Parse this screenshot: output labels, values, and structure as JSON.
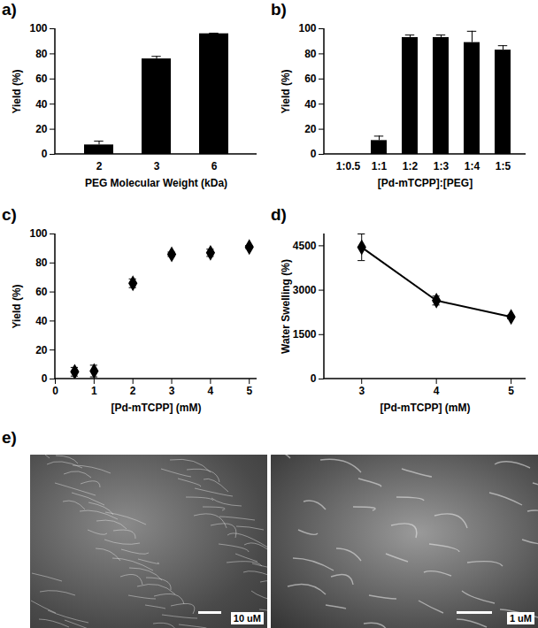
{
  "chart_data": [
    {
      "title": "a)",
      "type": "bar",
      "categories": [
        "2",
        "3",
        "6"
      ],
      "values": [
        7.5,
        76,
        96
      ],
      "errors": [
        3,
        2,
        0.5
      ],
      "color": "#000000",
      "x_label": "PEG Molecular Weight (kDa)",
      "y_label": "Yield (%)",
      "ylim": [
        0,
        100
      ],
      "yticks": [
        0,
        20,
        40,
        60,
        80,
        100
      ]
    },
    {
      "title": "b)",
      "type": "bar",
      "categories": [
        "1:0.5",
        "1:1",
        "1:2",
        "1:3",
        "1:4",
        "1:5"
      ],
      "values": [
        0,
        11,
        93,
        93,
        89,
        83
      ],
      "errors": [
        0,
        3.5,
        2,
        2,
        9,
        3.5
      ],
      "color": "#000000",
      "x_label": "[Pd-mTCPP]:[PEG]",
      "y_label": "Yield (%)",
      "ylim": [
        0,
        100
      ],
      "yticks": [
        0,
        20,
        40,
        60,
        80,
        100
      ]
    },
    {
      "title": "c)",
      "type": "scatter",
      "x": [
        0.5,
        1,
        2,
        3,
        4,
        5
      ],
      "values": [
        5,
        5.5,
        66,
        86,
        87,
        91
      ],
      "errors": [
        3,
        4,
        3,
        1.5,
        2.5,
        1
      ],
      "color": "#000000",
      "marker": "diamond",
      "x_label": "[Pd-mTCPP] (mM)",
      "y_label": "Yield (%)",
      "xlim": [
        0,
        5.2
      ],
      "xticks": [
        0,
        1,
        2,
        3,
        4,
        5
      ],
      "ylim": [
        0,
        100
      ],
      "yticks": [
        0,
        20,
        40,
        60,
        80,
        100
      ]
    },
    {
      "title": "d)",
      "type": "line",
      "x": [
        3,
        4,
        5
      ],
      "values": [
        4450,
        2650,
        2100
      ],
      "errors": [
        450,
        150,
        60
      ],
      "color": "#000000",
      "marker": "diamond",
      "x_label": "[Pd-mTCPP] (mM)",
      "y_label": "Water Swelling (%)",
      "xlim": [
        2.5,
        5.2
      ],
      "xticks": [
        3,
        4,
        5
      ],
      "ylim": [
        0,
        4900
      ],
      "yticks": [
        0,
        1500,
        3000,
        4500
      ]
    }
  ],
  "images": {
    "title": "e)",
    "scale_bars": [
      "10 uM",
      "1 uM"
    ]
  }
}
